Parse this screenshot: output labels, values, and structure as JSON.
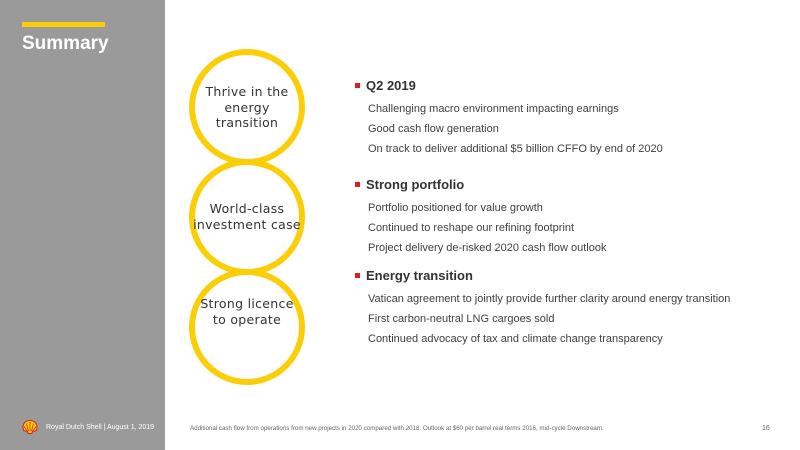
{
  "slide": {
    "title": "Summary",
    "page_number": "16",
    "footnote": "Additional cash flow from operations from new projects in 2020 compared with 2018. Outlook at $60 per barrel real terms 2016, mid-cycle Downstream."
  },
  "footer": {
    "company_date": "Royal Dutch Shell | August 1, 2019"
  },
  "circles": [
    {
      "label": "Thrive in the energy transition"
    },
    {
      "label": "World-class investment case"
    },
    {
      "label": "Strong licence to operate"
    }
  ],
  "sections": [
    {
      "heading": "Q2 2019",
      "items": [
        "Challenging macro environment impacting earnings",
        "Good cash flow generation",
        "On track to deliver additional $5 billion CFFO by end of 2020"
      ]
    },
    {
      "heading": "Strong portfolio",
      "items": [
        "Portfolio positioned for value growth",
        "Continued to reshape our refining footprint",
        "Project delivery de-risked 2020 cash flow outlook"
      ]
    },
    {
      "heading": "Energy transition",
      "items": [
        "Vatican agreement to jointly provide further clarity around energy transition",
        "First carbon-neutral LNG cargoes sold",
        "Continued advocacy of tax and climate change transparency"
      ]
    }
  ],
  "colors": {
    "brand_yellow": "#FBCE07",
    "brand_red": "#DD1D21",
    "sidebar_gray": "#9a9a9a"
  }
}
